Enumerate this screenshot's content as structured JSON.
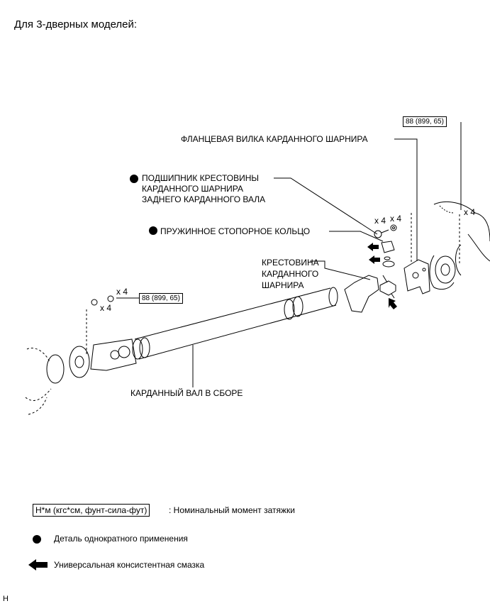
{
  "heading": "Для 3-дверных моделей:",
  "labels": {
    "flange_yoke": "ФЛАНЦЕВАЯ ВИЛКА КАРДАННОГО ШАРНИРА",
    "bearing": "ПОДШИПНИК КРЕСТОВИНЫ\nКАРДАННОГО ШАРНИРА\nЗАДНЕГО КАРДАННОГО ВАЛА",
    "snap_ring": "ПРУЖИННОЕ СТОПОРНОЕ КОЛЬЦО",
    "spider": "КРЕСТОВИНА\nКАРДАННОГО\nШАРНИРА",
    "shaft": "КАРДАННЫЙ ВАЛ В СБОРЕ",
    "x4_a": "x 4",
    "x4_b": "x 4",
    "x4_c": "x 4",
    "x4_d": "x 4",
    "x4_e": "x 4"
  },
  "torque": {
    "rear": "88 (899, 65)",
    "front": "88 (899, 65)"
  },
  "legend": {
    "torque_unit": "Н*м (кгс*см, фунт-сила-фут)",
    "torque_desc": ": Номинальный момент затяжки",
    "single_use_desc": "Деталь однократного применения",
    "grease_desc": "Универсальная консистентная смазка"
  },
  "footer_code": "H"
}
